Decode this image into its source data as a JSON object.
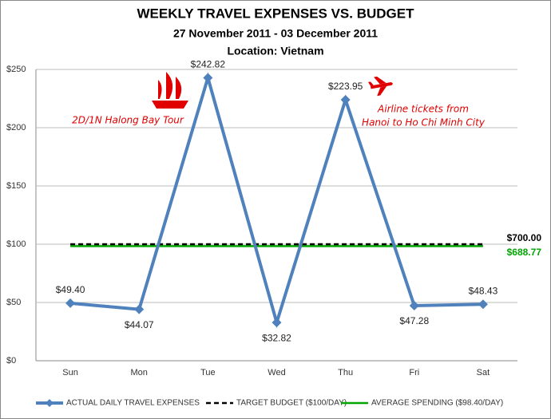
{
  "chart_data": {
    "type": "line",
    "title": "WEEKLY TRAVEL EXPENSES VS. BUDGET",
    "subtitle": "27 November 2011 - 03 December 2011",
    "location": "Location: Vietnam",
    "categories": [
      "Sun",
      "Mon",
      "Tue",
      "Wed",
      "Thu",
      "Fri",
      "Sat"
    ],
    "series": [
      {
        "name": "ACTUAL DAILY TRAVEL EXPENSES",
        "color": "#4f81bd",
        "style": "solid",
        "marker": "diamond",
        "values": [
          49.4,
          44.07,
          242.82,
          32.82,
          223.95,
          47.28,
          48.43
        ],
        "value_labels": [
          "$49.40",
          "$44.07",
          "$242.82",
          "$32.82",
          "$223.95",
          "$47.28",
          "$48.43"
        ]
      },
      {
        "name": "TARGET BUDGET ($100/DAY)",
        "color": "#000000",
        "style": "dashed",
        "values": [
          100,
          100,
          100,
          100,
          100,
          100,
          100
        ]
      },
      {
        "name": "AVERAGE SPENDING ($98.40/DAY)",
        "color": "#00a600",
        "style": "solid",
        "values": [
          98.4,
          98.4,
          98.4,
          98.4,
          98.4,
          98.4,
          98.4
        ]
      }
    ],
    "ylim": [
      0,
      250
    ],
    "yticks": [
      {
        "value": 0,
        "label": "$0"
      },
      {
        "value": 50,
        "label": "$50"
      },
      {
        "value": 100,
        "label": "$100"
      },
      {
        "value": 150,
        "label": "$150"
      },
      {
        "value": 200,
        "label": "$200"
      },
      {
        "value": 250,
        "label": "$250"
      }
    ],
    "grid": true,
    "legend": "bottom",
    "annotations": [
      {
        "lines": [
          "$700.00"
        ],
        "color": "#000000"
      },
      {
        "lines": [
          "$688.77"
        ],
        "color": "#00a600"
      },
      {
        "lines": [
          "2D/1N Halong Bay Tour"
        ],
        "color": "#e00000"
      },
      {
        "lines": [
          "Airline tickets from",
          "Hanoi to Ho Chi Minh City"
        ],
        "color": "#e00000"
      }
    ]
  }
}
